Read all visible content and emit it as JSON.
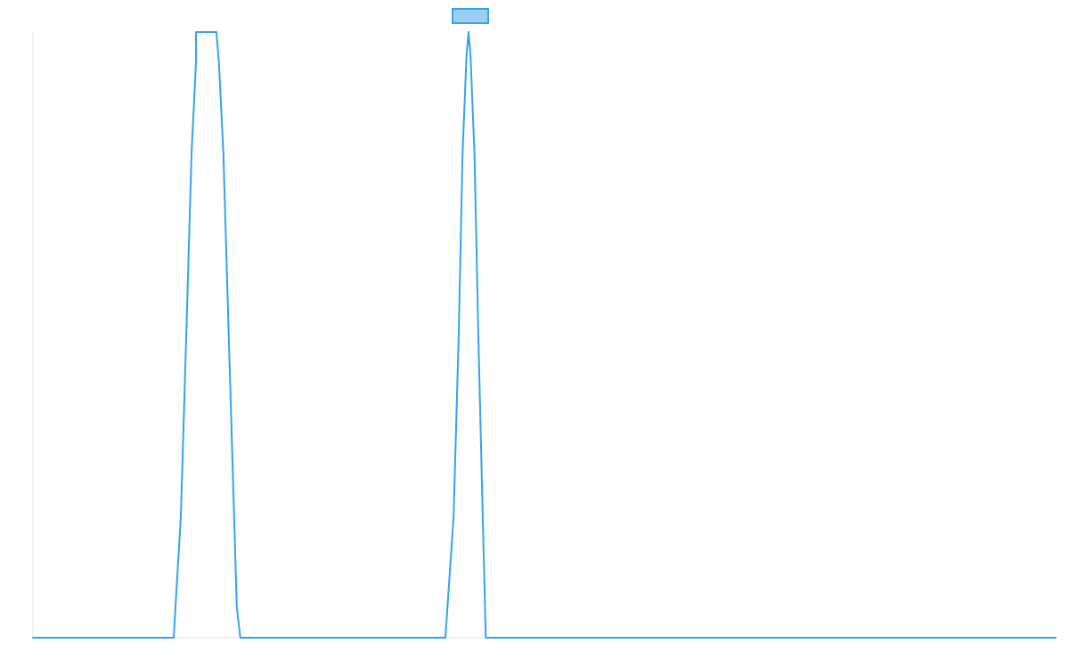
{
  "chart_data": {
    "type": "line",
    "title": "",
    "xlabel": "",
    "ylabel": "",
    "legend": "top-center",
    "grid": false,
    "xlim": [
      0,
      100
    ],
    "ylim": [
      0,
      1
    ],
    "series": [
      {
        "legend_label": "",
        "color": "#36a2eb",
        "fill_color": "#9ad0f5",
        "points": [
          [
            0,
            0
          ],
          [
            13.76,
            0
          ],
          [
            14.46,
            0.2
          ],
          [
            14.99,
            0.5
          ],
          [
            15.51,
            0.8
          ],
          [
            15.94,
            0.95
          ],
          [
            15.94,
            1
          ],
          [
            17.94,
            1
          ],
          [
            18.18,
            0.95
          ],
          [
            18.62,
            0.8
          ],
          [
            19.14,
            0.5
          ],
          [
            19.67,
            0.2
          ],
          [
            19.93,
            0.05
          ],
          [
            19.93,
            0.05
          ],
          [
            20.28,
            0
          ],
          [
            40.33,
            0
          ],
          [
            41.13,
            0.2
          ],
          [
            41.63,
            0.5
          ],
          [
            42.01,
            0.8
          ],
          [
            42.39,
            0.96
          ],
          [
            42.59,
            1
          ],
          [
            42.79,
            0.96
          ],
          [
            43.17,
            0.8
          ],
          [
            43.55,
            0.5
          ],
          [
            43.98,
            0.2
          ],
          [
            44.28,
            0
          ],
          [
            100,
            0
          ]
        ]
      }
    ]
  }
}
